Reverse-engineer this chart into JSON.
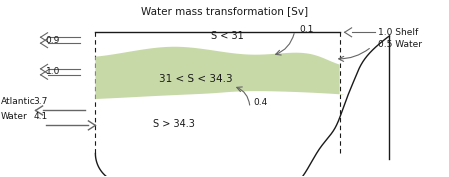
{
  "title": "Water mass transformation [Sv]",
  "bg_color": "#ffffff",
  "green_color": "#c8d9a8",
  "line_color": "#1a1a1a",
  "arrow_gray": "#666666",
  "labels": {
    "S_lt_31": "S < 31",
    "S_mid": "31 < S < 34.3",
    "S_gt_343": "S > 34.3",
    "val_09": "0.9",
    "val_10_hl": "1.0",
    "val_37": "3.7",
    "val_41": "4.1",
    "val_01": "0.1",
    "val_04": "0.4",
    "val_10shelf": "1.0 Shelf",
    "val_05water": "0.5 Water",
    "atlantic": "Atlantic",
    "water": "Water"
  }
}
